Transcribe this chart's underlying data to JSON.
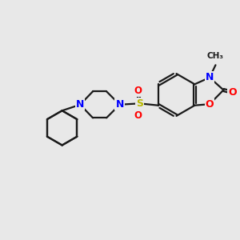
{
  "background_color": "#e8e8e8",
  "bond_color": "#1a1a1a",
  "N_color": "#0000ff",
  "O_color": "#ff0000",
  "S_color": "#b8b800",
  "line_width": 1.6,
  "font_size": 9.5,
  "figsize": [
    3.0,
    3.0
  ],
  "dpi": 100,
  "xlim": [
    0,
    10
  ],
  "ylim": [
    0,
    10
  ]
}
